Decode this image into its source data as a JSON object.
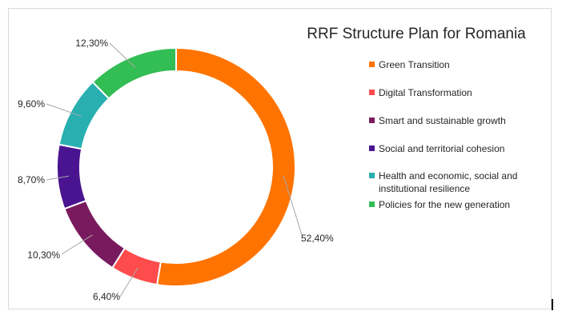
{
  "chart_data": {
    "type": "pie",
    "variant": "doughnut",
    "title": "RRF Structure Plan for Romania",
    "legend_position": "right",
    "categories": [
      "Green Transition",
      "Digital Transformation",
      "Smart and sustainable growth",
      "Social and territorial cohesion",
      "Health and economic, social and institutional resilience",
      "Policies for the new generation"
    ],
    "legend_lines": [
      [
        "Green Transition"
      ],
      [
        "Digital Transformation"
      ],
      [
        "Smart and sustainable growth"
      ],
      [
        "Social and territorial cohesion"
      ],
      [
        "Health and economic, social and",
        "institutional resilience"
      ],
      [
        "Policies for the new generation"
      ]
    ],
    "values": [
      52.4,
      6.4,
      10.3,
      8.7,
      9.6,
      12.3
    ],
    "labels": [
      "52,40%",
      "6,40%",
      "10,30%",
      "8,70%",
      "9,60%",
      "12,30%"
    ],
    "colors": [
      "#ff7300",
      "#fe4b4b",
      "#7a1a5e",
      "#4a1491",
      "#2aafb0",
      "#33bd55"
    ]
  }
}
